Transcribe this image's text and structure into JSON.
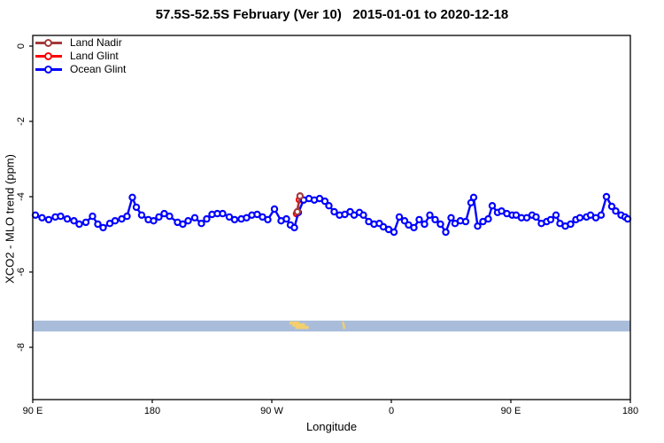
{
  "chart_data": {
    "type": "line",
    "title": "57.5S-52.5S February (Ver 10)   2015-01-01 to 2020-12-18",
    "xlabel": "Longitude",
    "ylabel": "XCO2 - MLO trend (ppm)",
    "x_axis": {
      "min": 90,
      "max": 540,
      "note": "longitude axis wraps eastward from 90E through 180 and 90W back to 180",
      "ticks": [
        {
          "value": 90,
          "label": "90 E"
        },
        {
          "value": 180,
          "label": "180"
        },
        {
          "value": 270,
          "label": "90 W"
        },
        {
          "value": 360,
          "label": "0"
        },
        {
          "value": 450,
          "label": "90 E"
        },
        {
          "value": 540,
          "label": "180"
        }
      ]
    },
    "y_axis": {
      "min": -9.5,
      "max": 0.3,
      "ticks": [
        {
          "value": 0,
          "label": "0"
        },
        {
          "value": -2,
          "label": "-2"
        },
        {
          "value": -4,
          "label": "-4"
        },
        {
          "value": -6,
          "label": "-6"
        },
        {
          "value": -8,
          "label": "-8"
        }
      ]
    },
    "series": [
      {
        "name": "Land Nadir",
        "color": "#A43A3A",
        "points": [
          [
            289.3,
            -4.4
          ],
          [
            291.3,
            -3.98
          ]
        ]
      },
      {
        "name": "Land Glint",
        "color": "#FF0000",
        "points": [
          [
            288.6,
            -4.45
          ],
          [
            290.7,
            -4.08
          ]
        ]
      },
      {
        "name": "Ocean Glint",
        "color": "#0000FF",
        "points": [
          [
            92,
            -4.49
          ],
          [
            97,
            -4.56
          ],
          [
            102,
            -4.61
          ],
          [
            107,
            -4.54
          ],
          [
            111,
            -4.52
          ],
          [
            116,
            -4.59
          ],
          [
            121,
            -4.64
          ],
          [
            125,
            -4.73
          ],
          [
            130,
            -4.68
          ],
          [
            135,
            -4.52
          ],
          [
            139,
            -4.73
          ],
          [
            143,
            -4.82
          ],
          [
            148,
            -4.71
          ],
          [
            152,
            -4.64
          ],
          [
            157,
            -4.59
          ],
          [
            161,
            -4.52
          ],
          [
            165,
            -4.02
          ],
          [
            168,
            -4.28
          ],
          [
            172,
            -4.49
          ],
          [
            177,
            -4.61
          ],
          [
            181,
            -4.64
          ],
          [
            185,
            -4.54
          ],
          [
            189,
            -4.45
          ],
          [
            193,
            -4.52
          ],
          [
            199,
            -4.68
          ],
          [
            203,
            -4.73
          ],
          [
            207,
            -4.64
          ],
          [
            212,
            -4.56
          ],
          [
            217,
            -4.71
          ],
          [
            221,
            -4.59
          ],
          [
            225,
            -4.47
          ],
          [
            229,
            -4.45
          ],
          [
            233,
            -4.45
          ],
          [
            238,
            -4.54
          ],
          [
            242,
            -4.61
          ],
          [
            247,
            -4.59
          ],
          [
            251,
            -4.56
          ],
          [
            255,
            -4.49
          ],
          [
            259,
            -4.47
          ],
          [
            263,
            -4.54
          ],
          [
            267,
            -4.61
          ],
          [
            272,
            -4.33
          ],
          [
            277,
            -4.64
          ],
          [
            281,
            -4.59
          ],
          [
            284,
            -4.75
          ],
          [
            287,
            -4.82
          ],
          [
            290,
            -4.42
          ],
          [
            294,
            -4.09
          ],
          [
            298,
            -4.05
          ],
          [
            302,
            -4.09
          ],
          [
            306,
            -4.05
          ],
          [
            310,
            -4.12
          ],
          [
            313,
            -4.24
          ],
          [
            317,
            -4.4
          ],
          [
            321,
            -4.49
          ],
          [
            325,
            -4.47
          ],
          [
            329,
            -4.4
          ],
          [
            332,
            -4.49
          ],
          [
            336,
            -4.42
          ],
          [
            339,
            -4.49
          ],
          [
            343,
            -4.66
          ],
          [
            347,
            -4.73
          ],
          [
            351,
            -4.71
          ],
          [
            354,
            -4.8
          ],
          [
            358,
            -4.87
          ],
          [
            362,
            -4.94
          ],
          [
            366,
            -4.54
          ],
          [
            370,
            -4.64
          ],
          [
            373,
            -4.75
          ],
          [
            377,
            -4.82
          ],
          [
            381,
            -4.61
          ],
          [
            385,
            -4.73
          ],
          [
            389,
            -4.49
          ],
          [
            393,
            -4.61
          ],
          [
            397,
            -4.73
          ],
          [
            401,
            -4.94
          ],
          [
            405,
            -4.56
          ],
          [
            408,
            -4.71
          ],
          [
            412,
            -4.64
          ],
          [
            416,
            -4.66
          ],
          [
            420,
            -4.16
          ],
          [
            422,
            -4.02
          ],
          [
            425,
            -4.78
          ],
          [
            429,
            -4.66
          ],
          [
            433,
            -4.59
          ],
          [
            436,
            -4.24
          ],
          [
            440,
            -4.42
          ],
          [
            443,
            -4.38
          ],
          [
            447,
            -4.45
          ],
          [
            451,
            -4.49
          ],
          [
            454,
            -4.49
          ],
          [
            458,
            -4.56
          ],
          [
            462,
            -4.56
          ],
          [
            466,
            -4.49
          ],
          [
            469,
            -4.54
          ],
          [
            473,
            -4.71
          ],
          [
            477,
            -4.66
          ],
          [
            480,
            -4.61
          ],
          [
            484,
            -4.49
          ],
          [
            487,
            -4.71
          ],
          [
            491,
            -4.78
          ],
          [
            495,
            -4.73
          ],
          [
            499,
            -4.61
          ],
          [
            502,
            -4.56
          ],
          [
            507,
            -4.54
          ],
          [
            510,
            -4.49
          ],
          [
            514,
            -4.56
          ],
          [
            518,
            -4.49
          ],
          [
            522,
            -4.0
          ],
          [
            526,
            -4.26
          ],
          [
            529,
            -4.38
          ],
          [
            533,
            -4.49
          ],
          [
            536,
            -4.54
          ],
          [
            538,
            -4.59
          ]
        ]
      }
    ],
    "map_strip": {
      "description": "thin world-map band of the 57.5S-52.5S latitude zone",
      "ocean_color": "#A9BDDB",
      "land_color": "#F3CF6E",
      "ppm_top": -7.29,
      "ppm_bottom": -7.58,
      "land_patches_deg": [
        [
          283.3,
          298.0
        ],
        [
          323.0,
          325.3
        ]
      ]
    },
    "legend_position": "top-left",
    "grid": false
  },
  "legend": {
    "items": [
      {
        "label": "Land Nadir",
        "color": "#A43A3A"
      },
      {
        "label": "Land Glint",
        "color": "#FF0000"
      },
      {
        "label": "Ocean Glint",
        "color": "#0000FF"
      }
    ]
  }
}
